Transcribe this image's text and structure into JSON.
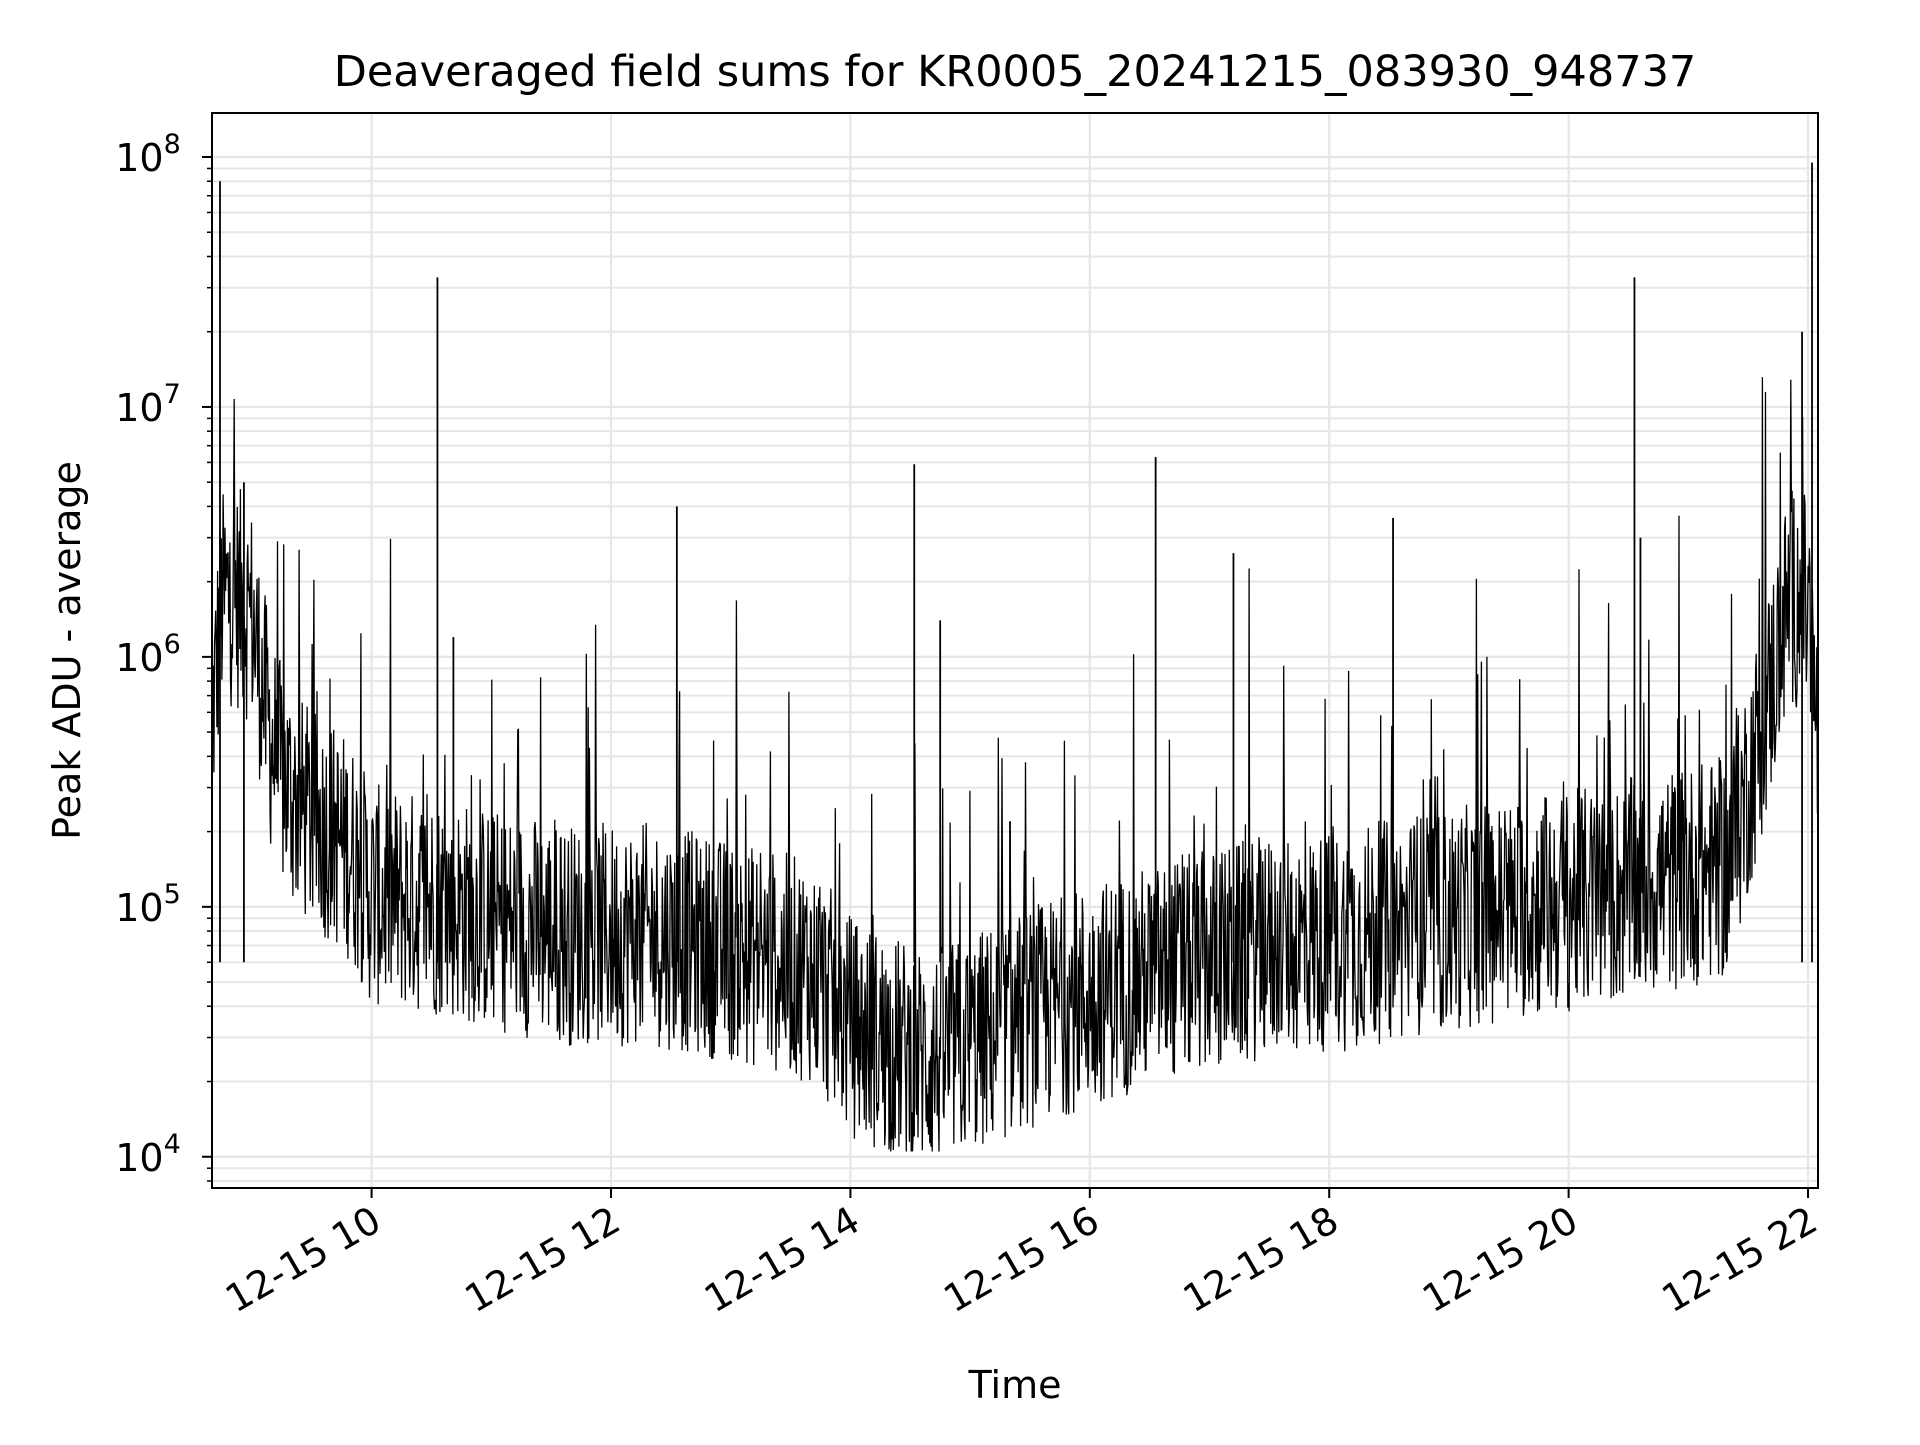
{
  "chart_data": {
    "type": "line",
    "title": "Deaveraged field sums for KR0005_20241215_083930_948737",
    "xlabel": "Time",
    "ylabel": "Peak ADU - average",
    "yscale": "log",
    "ylim": [
      7500,
      150000000
    ],
    "xlim": [
      "2024-12-15 08:40",
      "2024-12-15 22:05"
    ],
    "x_ticks": [
      "12-15 10",
      "12-15 12",
      "12-15 14",
      "12-15 16",
      "12-15 18",
      "12-15 20",
      "12-15 22"
    ],
    "y_ticks": [
      {
        "base": "10",
        "exp": "4"
      },
      {
        "base": "10",
        "exp": "5"
      },
      {
        "base": "10",
        "exp": "6"
      },
      {
        "base": "10",
        "exp": "7"
      },
      {
        "base": "10",
        "exp": "8"
      }
    ],
    "grid": true,
    "line_color": "#000000",
    "series": [
      {
        "x": [
          "2024-12-15 08:40",
          "2024-12-15 08:45",
          "2024-12-15 08:50",
          "2024-12-15 08:55",
          "2024-12-15 09:00",
          "2024-12-15 09:05",
          "2024-12-15 09:10",
          "2024-12-15 09:15",
          "2024-12-15 09:20",
          "2024-12-15 09:30",
          "2024-12-15 09:40",
          "2024-12-15 09:50",
          "2024-12-15 10:00",
          "2024-12-15 10:20",
          "2024-12-15 10:40",
          "2024-12-15 11:00",
          "2024-12-15 11:20",
          "2024-12-15 11:40",
          "2024-12-15 12:00",
          "2024-12-15 12:20",
          "2024-12-15 12:40",
          "2024-12-15 13:00",
          "2024-12-15 13:20",
          "2024-12-15 13:40",
          "2024-12-15 14:00",
          "2024-12-15 14:20",
          "2024-12-15 14:40",
          "2024-12-15 15:00",
          "2024-12-15 15:20",
          "2024-12-15 15:40",
          "2024-12-15 16:00",
          "2024-12-15 16:20",
          "2024-12-15 16:40",
          "2024-12-15 17:00",
          "2024-12-15 17:20",
          "2024-12-15 17:40",
          "2024-12-15 18:00",
          "2024-12-15 18:20",
          "2024-12-15 18:40",
          "2024-12-15 19:00",
          "2024-12-15 19:20",
          "2024-12-15 19:40",
          "2024-12-15 20:00",
          "2024-12-15 20:20",
          "2024-12-15 20:40",
          "2024-12-15 21:00",
          "2024-12-15 21:20",
          "2024-12-15 21:40",
          "2024-12-15 21:50",
          "2024-12-15 21:55",
          "2024-12-15 22:00",
          "2024-12-15 22:05"
        ],
        "y": [
          500000,
          1500000,
          1600000,
          1500000,
          1300000,
          700000,
          400000,
          300000,
          250000,
          200000,
          180000,
          150000,
          100000,
          95000,
          90000,
          80000,
          75000,
          70000,
          70000,
          70000,
          65000,
          60000,
          55000,
          50000,
          30000,
          25000,
          22000,
          25000,
          30000,
          35000,
          40000,
          45000,
          50000,
          55000,
          60000,
          65000,
          65000,
          70000,
          75000,
          80000,
          85000,
          90000,
          95000,
          100000,
          110000,
          120000,
          130000,
          600000,
          1500000,
          1600000,
          1400000,
          400000
        ]
      }
    ],
    "spikes": [
      {
        "x": "2024-12-15 08:44",
        "y": 80000000
      },
      {
        "x": "2024-12-15 08:56",
        "y": 5000000
      },
      {
        "x": "2024-12-15 10:33",
        "y": 33000000
      },
      {
        "x": "2024-12-15 10:41",
        "y": 1200000
      },
      {
        "x": "2024-12-15 12:33",
        "y": 4000000
      },
      {
        "x": "2024-12-15 14:32",
        "y": 5900000
      },
      {
        "x": "2024-12-15 14:45",
        "y": 1400000
      },
      {
        "x": "2024-12-15 15:20",
        "y": 220000
      },
      {
        "x": "2024-12-15 16:33",
        "y": 6300000
      },
      {
        "x": "2024-12-15 17:12",
        "y": 2600000
      },
      {
        "x": "2024-12-15 18:32",
        "y": 3600000
      },
      {
        "x": "2024-12-15 20:33",
        "y": 33000000
      },
      {
        "x": "2024-12-15 20:36",
        "y": 3000000
      },
      {
        "x": "2024-12-15 21:57",
        "y": 20000000
      },
      {
        "x": "2024-12-15 22:02",
        "y": 95000000
      }
    ]
  }
}
